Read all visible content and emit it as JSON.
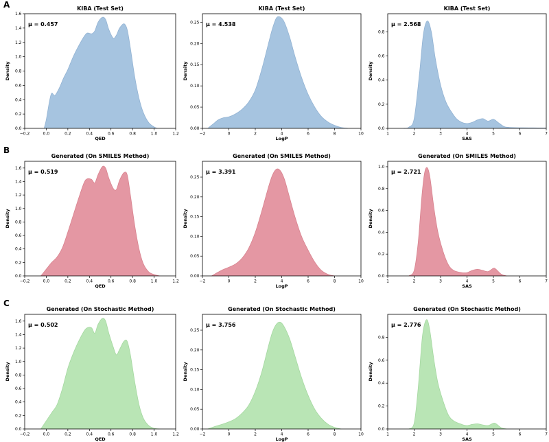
{
  "panels": {
    "A": "A",
    "B": "B",
    "C": "C"
  },
  "styles": {
    "A": {
      "fill": "#a6c4e0",
      "line": "#93b3d3"
    },
    "B": {
      "fill": "#e497a3",
      "line": "#d8838f"
    },
    "C": {
      "fill": "#b9e5b5",
      "line": "#a5d8a1"
    }
  },
  "chart_data": [
    {
      "type": "area",
      "row": "A",
      "col": 0,
      "title": "KIBA (Test Set)",
      "xlabel": "QED",
      "ylabel": "Density",
      "xlim": [
        -0.2,
        1.2
      ],
      "ylim": [
        0,
        1.6
      ],
      "xticks": [
        -0.2,
        0,
        0.2,
        0.4,
        0.6,
        0.8,
        1.0,
        1.2
      ],
      "yticks": [
        0,
        0.2,
        0.4,
        0.6,
        0.8,
        1.0,
        1.2,
        1.4,
        1.6
      ],
      "annotation": "μ = 0.457",
      "x": [
        -0.02,
        0.0,
        0.03,
        0.05,
        0.08,
        0.12,
        0.16,
        0.2,
        0.25,
        0.3,
        0.35,
        0.38,
        0.42,
        0.45,
        0.48,
        0.52,
        0.55,
        0.58,
        0.62,
        0.65,
        0.68,
        0.72,
        0.75,
        0.78,
        0.82,
        0.86,
        0.9,
        0.95,
        1.0,
        1.03
      ],
      "y": [
        0.0,
        0.12,
        0.38,
        0.49,
        0.46,
        0.56,
        0.7,
        0.82,
        1.0,
        1.15,
        1.28,
        1.33,
        1.32,
        1.36,
        1.48,
        1.55,
        1.52,
        1.38,
        1.26,
        1.3,
        1.4,
        1.46,
        1.38,
        1.12,
        0.72,
        0.42,
        0.22,
        0.08,
        0.02,
        0.0
      ]
    },
    {
      "type": "area",
      "row": "A",
      "col": 1,
      "title": "KIBA (Test Set)",
      "xlabel": "LogP",
      "ylabel": "Density",
      "xlim": [
        -2,
        10
      ],
      "ylim": [
        0,
        0.27
      ],
      "xticks": [
        -2,
        0,
        2,
        4,
        6,
        8,
        10
      ],
      "yticks": [
        0,
        0.05,
        0.1,
        0.15,
        0.2,
        0.25
      ],
      "annotation": "μ = 4.538",
      "x": [
        -1.6,
        -1.2,
        -0.8,
        -0.4,
        0.0,
        0.5,
        1.0,
        1.5,
        2.0,
        2.5,
        3.0,
        3.3,
        3.6,
        3.9,
        4.2,
        4.6,
        5.0,
        5.5,
        6.0,
        6.5,
        7.0,
        7.5,
        8.0,
        8.5,
        9.0
      ],
      "y": [
        0.0,
        0.01,
        0.02,
        0.025,
        0.027,
        0.034,
        0.045,
        0.062,
        0.09,
        0.14,
        0.2,
        0.235,
        0.26,
        0.262,
        0.25,
        0.215,
        0.17,
        0.12,
        0.08,
        0.05,
        0.028,
        0.015,
        0.007,
        0.002,
        0.0
      ]
    },
    {
      "type": "area",
      "row": "A",
      "col": 2,
      "title": "KIBA (Test Set)",
      "xlabel": "SAS",
      "ylabel": "Density",
      "xlim": [
        1,
        7
      ],
      "ylim": [
        0,
        0.95
      ],
      "xticks": [
        1,
        2,
        3,
        4,
        5,
        6,
        7
      ],
      "yticks": [
        0,
        0.2,
        0.4,
        0.6,
        0.8
      ],
      "annotation": "μ = 2.568",
      "x": [
        1.6,
        1.8,
        2.0,
        2.2,
        2.35,
        2.5,
        2.65,
        2.8,
        3.0,
        3.2,
        3.4,
        3.6,
        3.8,
        4.0,
        4.2,
        4.4,
        4.6,
        4.8,
        5.0,
        5.2,
        5.4,
        5.6,
        6.0,
        6.5,
        7.0
      ],
      "y": [
        0.0,
        0.01,
        0.08,
        0.45,
        0.78,
        0.89,
        0.8,
        0.58,
        0.36,
        0.22,
        0.14,
        0.08,
        0.05,
        0.04,
        0.05,
        0.07,
        0.08,
        0.06,
        0.075,
        0.045,
        0.015,
        0.008,
        0.005,
        0.004,
        0.003
      ]
    },
    {
      "type": "area",
      "row": "B",
      "col": 0,
      "title": "Generated (On SMILES Method)",
      "xlabel": "QED",
      "ylabel": "Density",
      "xlim": [
        -0.2,
        1.2
      ],
      "ylim": [
        0,
        1.7
      ],
      "xticks": [
        -0.2,
        0,
        0.2,
        0.4,
        0.6,
        0.8,
        1.0,
        1.2
      ],
      "yticks": [
        0,
        0.2,
        0.4,
        0.6,
        0.8,
        1.0,
        1.2,
        1.4,
        1.6
      ],
      "annotation": "μ = 0.519",
      "x": [
        -0.05,
        0.0,
        0.05,
        0.1,
        0.15,
        0.2,
        0.25,
        0.3,
        0.35,
        0.38,
        0.42,
        0.45,
        0.48,
        0.52,
        0.55,
        0.58,
        0.62,
        0.65,
        0.68,
        0.72,
        0.75,
        0.78,
        0.82,
        0.86,
        0.9,
        0.95,
        1.0,
        1.05
      ],
      "y": [
        0.0,
        0.1,
        0.2,
        0.28,
        0.42,
        0.65,
        0.9,
        1.15,
        1.38,
        1.44,
        1.43,
        1.38,
        1.5,
        1.62,
        1.6,
        1.45,
        1.3,
        1.28,
        1.42,
        1.53,
        1.5,
        1.2,
        0.75,
        0.4,
        0.18,
        0.06,
        0.02,
        0.0
      ]
    },
    {
      "type": "area",
      "row": "B",
      "col": 1,
      "title": "Generated (On SMILES Method)",
      "xlabel": "LogP",
      "ylabel": "Density",
      "xlim": [
        -2,
        10
      ],
      "ylim": [
        0,
        0.29
      ],
      "xticks": [
        -2,
        0,
        2,
        4,
        6,
        8,
        10
      ],
      "yticks": [
        0,
        0.05,
        0.1,
        0.15,
        0.2,
        0.25
      ],
      "annotation": "μ = 3.391",
      "x": [
        -1.3,
        -1.0,
        -0.5,
        0.0,
        0.5,
        1.0,
        1.5,
        2.0,
        2.5,
        3.0,
        3.3,
        3.6,
        3.9,
        4.2,
        4.5,
        5.0,
        5.5,
        6.0,
        6.5,
        7.0,
        7.5,
        8.0
      ],
      "y": [
        0.0,
        0.006,
        0.015,
        0.022,
        0.03,
        0.045,
        0.07,
        0.11,
        0.165,
        0.225,
        0.255,
        0.27,
        0.266,
        0.245,
        0.21,
        0.15,
        0.1,
        0.065,
        0.035,
        0.014,
        0.004,
        0.0
      ]
    },
    {
      "type": "area",
      "row": "B",
      "col": 2,
      "title": "Generated (On SMILES Method)",
      "xlabel": "SAS",
      "ylabel": "Density",
      "xlim": [
        1,
        7
      ],
      "ylim": [
        0,
        1.05
      ],
      "xticks": [
        1,
        2,
        3,
        4,
        5,
        6,
        7
      ],
      "yticks": [
        0,
        0.2,
        0.4,
        0.6,
        0.8,
        1.0
      ],
      "annotation": "μ = 2.721",
      "x": [
        1.8,
        2.0,
        2.15,
        2.3,
        2.4,
        2.5,
        2.6,
        2.75,
        2.9,
        3.1,
        3.3,
        3.5,
        3.8,
        4.0,
        4.2,
        4.4,
        4.6,
        4.8,
        5.0,
        5.1,
        5.3,
        5.5
      ],
      "y": [
        0.0,
        0.05,
        0.3,
        0.75,
        0.95,
        0.99,
        0.9,
        0.62,
        0.4,
        0.22,
        0.1,
        0.05,
        0.03,
        0.03,
        0.05,
        0.06,
        0.05,
        0.04,
        0.07,
        0.06,
        0.015,
        0.0
      ]
    },
    {
      "type": "area",
      "row": "C",
      "col": 0,
      "title": "Generated (On Stochastic Method)",
      "xlabel": "QED",
      "ylabel": "Density",
      "xlim": [
        -0.2,
        1.2
      ],
      "ylim": [
        0,
        1.7
      ],
      "xticks": [
        -0.2,
        0,
        0.2,
        0.4,
        0.6,
        0.8,
        1.0,
        1.2
      ],
      "yticks": [
        0,
        0.2,
        0.4,
        0.6,
        0.8,
        1.0,
        1.2,
        1.4,
        1.6
      ],
      "annotation": "μ = 0.502",
      "x": [
        -0.05,
        0.0,
        0.05,
        0.1,
        0.15,
        0.2,
        0.25,
        0.3,
        0.35,
        0.38,
        0.42,
        0.45,
        0.48,
        0.52,
        0.55,
        0.58,
        0.62,
        0.65,
        0.68,
        0.72,
        0.75,
        0.78,
        0.82,
        0.86,
        0.9,
        0.95,
        1.0,
        1.05
      ],
      "y": [
        0.0,
        0.12,
        0.24,
        0.36,
        0.6,
        0.9,
        1.12,
        1.3,
        1.45,
        1.5,
        1.5,
        1.42,
        1.55,
        1.64,
        1.6,
        1.42,
        1.22,
        1.1,
        1.18,
        1.3,
        1.3,
        1.1,
        0.7,
        0.36,
        0.16,
        0.05,
        0.01,
        0.0
      ]
    },
    {
      "type": "area",
      "row": "C",
      "col": 1,
      "title": "Generated (On Stochastic Method)",
      "xlabel": "LogP",
      "ylabel": "Density",
      "xlim": [
        -2,
        10
      ],
      "ylim": [
        0,
        0.29
      ],
      "xticks": [
        -2,
        0,
        2,
        4,
        6,
        8,
        10
      ],
      "yticks": [
        0,
        0.05,
        0.1,
        0.15,
        0.2,
        0.25
      ],
      "annotation": "μ = 3.756",
      "x": [
        -1.6,
        -1.0,
        -0.5,
        0.0,
        0.5,
        1.0,
        1.5,
        2.0,
        2.5,
        3.0,
        3.3,
        3.6,
        3.9,
        4.2,
        4.6,
        5.0,
        5.5,
        6.0,
        6.5,
        7.0,
        7.5,
        8.0,
        8.5
      ],
      "y": [
        0.0,
        0.007,
        0.012,
        0.018,
        0.026,
        0.04,
        0.06,
        0.095,
        0.145,
        0.21,
        0.245,
        0.265,
        0.27,
        0.258,
        0.228,
        0.185,
        0.13,
        0.085,
        0.05,
        0.027,
        0.012,
        0.004,
        0.0
      ]
    },
    {
      "type": "area",
      "row": "C",
      "col": 2,
      "title": "Generated (On Stochastic Method)",
      "xlabel": "SAS",
      "ylabel": "Density",
      "xlim": [
        1,
        7
      ],
      "ylim": [
        0,
        1.0
      ],
      "xticks": [
        1,
        2,
        3,
        4,
        5,
        6,
        7
      ],
      "yticks": [
        0,
        0.2,
        0.4,
        0.6,
        0.8
      ],
      "annotation": "μ = 2.776",
      "x": [
        1.8,
        2.0,
        2.15,
        2.3,
        2.4,
        2.5,
        2.6,
        2.75,
        2.9,
        3.1,
        3.3,
        3.5,
        3.8,
        4.0,
        4.2,
        4.4,
        4.6,
        4.8,
        5.0,
        5.1,
        5.3,
        5.5
      ],
      "y": [
        0.0,
        0.05,
        0.35,
        0.78,
        0.92,
        0.95,
        0.85,
        0.6,
        0.4,
        0.24,
        0.12,
        0.07,
        0.04,
        0.03,
        0.04,
        0.045,
        0.035,
        0.03,
        0.05,
        0.045,
        0.01,
        0.0
      ]
    }
  ]
}
